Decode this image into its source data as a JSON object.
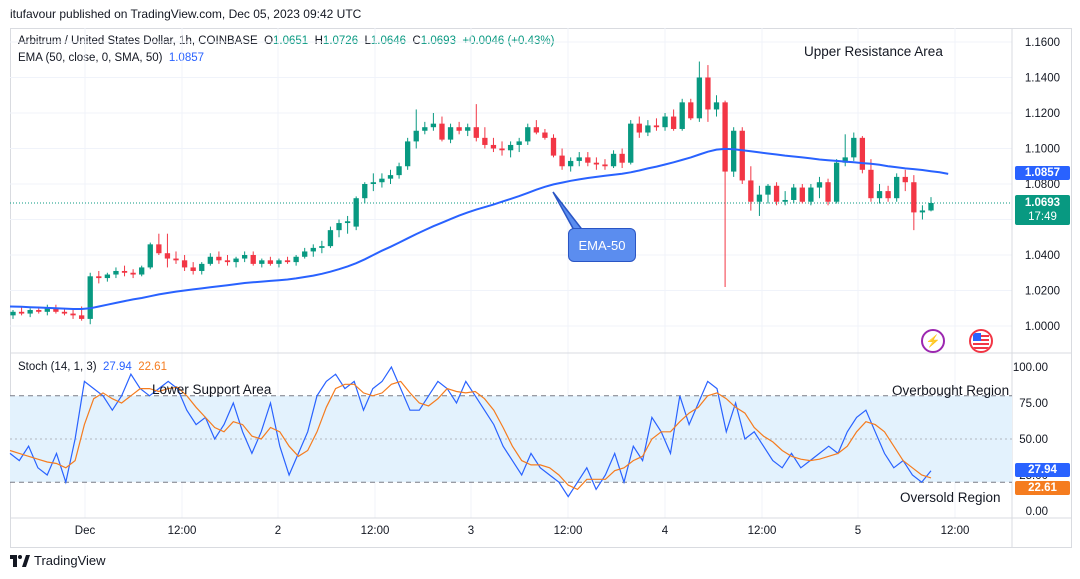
{
  "header": {
    "credit": "itufavour published on TradingView.com, Dec 05, 2023 09:42 UTC"
  },
  "legend": {
    "symbol": "Arbitrum / United States Dollar, 1h, COINBASE",
    "o_label": "O",
    "o": "1.0651",
    "h_label": "H",
    "h": "1.0726",
    "l_label": "L",
    "l": "1.0646",
    "c_label": "C",
    "c": "1.0693",
    "change": "+0.0046 (+0.43%)",
    "ema_label": "EMA (50, close, 0, SMA, 50)",
    "ema_value": "1.0857",
    "stoch_label": "Stoch (14, 1, 3)",
    "stoch_k": "27.94",
    "stoch_d": "22.61"
  },
  "annotations": {
    "upper_resistance": "Upper Resistance Area",
    "lower_support": "Lower Support Area",
    "overbought": "Overbought Region",
    "oversold": "Oversold Region",
    "ema_callout": "EMA-50"
  },
  "price_tags": {
    "ema": "1.0857",
    "close": "1.0693",
    "countdown": "17:49",
    "k": "27.94",
    "d": "22.61"
  },
  "footer": {
    "brand": "TradingView"
  },
  "colors": {
    "up": "#089981",
    "down": "#f23645",
    "ema": "#2962ff",
    "k": "#2962ff",
    "d": "#f57c1f",
    "band": "#e3f2fd"
  },
  "icons": {
    "bolt": "lightning-icon",
    "flag": "us-flag-icon"
  },
  "chart_data": [
    {
      "type": "candlestick",
      "title": "Arbitrum / United States Dollar, 1h, COINBASE",
      "ylim": [
        0.99,
        1.165
      ],
      "yticks": [
        "1.1600",
        "1.1400",
        "1.1200",
        "1.1000",
        "1.0800",
        "1.0600",
        "1.0400",
        "1.0200",
        "1.0000"
      ],
      "xticks": [
        "Dec",
        "12:00",
        "2",
        "12:00",
        "3",
        "12:00",
        "4",
        "12:00",
        "5",
        "12:00"
      ],
      "close_line": 1.0693,
      "candles": [
        [
          1.006,
          1.009,
          1.004,
          1.008
        ],
        [
          1.008,
          1.011,
          1.006,
          1.007
        ],
        [
          1.007,
          1.01,
          1.005,
          1.009
        ],
        [
          1.009,
          1.011,
          1.007,
          1.008
        ],
        [
          1.008,
          1.012,
          1.006,
          1.01
        ],
        [
          1.01,
          1.012,
          1.007,
          1.008
        ],
        [
          1.008,
          1.01,
          1.006,
          1.007
        ],
        [
          1.007,
          1.01,
          1.004,
          1.006
        ],
        [
          1.006,
          1.011,
          1.003,
          1.004
        ],
        [
          1.004,
          1.03,
          1.001,
          1.028
        ],
        [
          1.028,
          1.031,
          1.024,
          1.027
        ],
        [
          1.027,
          1.03,
          1.025,
          1.029
        ],
        [
          1.029,
          1.033,
          1.027,
          1.031
        ],
        [
          1.031,
          1.034,
          1.028,
          1.03
        ],
        [
          1.03,
          1.032,
          1.027,
          1.029
        ],
        [
          1.029,
          1.034,
          1.028,
          1.033
        ],
        [
          1.033,
          1.047,
          1.032,
          1.046
        ],
        [
          1.046,
          1.052,
          1.04,
          1.041
        ],
        [
          1.041,
          1.052,
          1.033,
          1.038
        ],
        [
          1.038,
          1.042,
          1.035,
          1.037
        ],
        [
          1.037,
          1.04,
          1.031,
          1.033
        ],
        [
          1.033,
          1.036,
          1.029,
          1.031
        ],
        [
          1.031,
          1.036,
          1.029,
          1.035
        ],
        [
          1.035,
          1.041,
          1.034,
          1.039
        ],
        [
          1.039,
          1.042,
          1.035,
          1.037
        ],
        [
          1.037,
          1.04,
          1.034,
          1.036
        ],
        [
          1.036,
          1.039,
          1.033,
          1.038
        ],
        [
          1.038,
          1.042,
          1.036,
          1.04
        ],
        [
          1.04,
          1.042,
          1.034,
          1.035
        ],
        [
          1.035,
          1.038,
          1.033,
          1.037
        ],
        [
          1.037,
          1.039,
          1.034,
          1.035
        ],
        [
          1.035,
          1.038,
          1.033,
          1.037
        ],
        [
          1.037,
          1.039,
          1.035,
          1.036
        ],
        [
          1.036,
          1.04,
          1.034,
          1.039
        ],
        [
          1.039,
          1.044,
          1.038,
          1.042
        ],
        [
          1.042,
          1.046,
          1.039,
          1.044
        ],
        [
          1.044,
          1.048,
          1.041,
          1.045
        ],
        [
          1.045,
          1.056,
          1.044,
          1.054
        ],
        [
          1.054,
          1.06,
          1.05,
          1.058
        ],
        [
          1.058,
          1.062,
          1.052,
          1.059
        ],
        [
          1.056,
          1.073,
          1.054,
          1.072
        ],
        [
          1.072,
          1.081,
          1.069,
          1.08
        ],
        [
          1.08,
          1.086,
          1.076,
          1.081
        ],
        [
          1.081,
          1.086,
          1.078,
          1.083
        ],
        [
          1.083,
          1.088,
          1.08,
          1.085
        ],
        [
          1.085,
          1.092,
          1.083,
          1.09
        ],
        [
          1.09,
          1.106,
          1.088,
          1.104
        ],
        [
          1.104,
          1.122,
          1.1,
          1.11
        ],
        [
          1.11,
          1.115,
          1.108,
          1.112
        ],
        [
          1.112,
          1.12,
          1.11,
          1.114
        ],
        [
          1.114,
          1.118,
          1.104,
          1.105
        ],
        [
          1.105,
          1.114,
          1.103,
          1.112
        ],
        [
          1.112,
          1.115,
          1.108,
          1.11
        ],
        [
          1.11,
          1.114,
          1.107,
          1.112
        ],
        [
          1.112,
          1.125,
          1.104,
          1.106
        ],
        [
          1.106,
          1.112,
          1.1,
          1.102
        ],
        [
          1.102,
          1.106,
          1.098,
          1.1
        ],
        [
          1.1,
          1.104,
          1.096,
          1.099
        ],
        [
          1.099,
          1.104,
          1.095,
          1.102
        ],
        [
          1.102,
          1.106,
          1.098,
          1.104
        ],
        [
          1.104,
          1.114,
          1.102,
          1.112
        ],
        [
          1.112,
          1.116,
          1.108,
          1.109
        ],
        [
          1.109,
          1.111,
          1.105,
          1.106
        ],
        [
          1.106,
          1.108,
          1.095,
          1.096
        ],
        [
          1.096,
          1.1,
          1.088,
          1.09
        ],
        [
          1.09,
          1.095,
          1.087,
          1.093
        ],
        [
          1.093,
          1.098,
          1.09,
          1.095
        ],
        [
          1.095,
          1.098,
          1.09,
          1.092
        ],
        [
          1.092,
          1.095,
          1.088,
          1.091
        ],
        [
          1.091,
          1.094,
          1.088,
          1.09
        ],
        [
          1.09,
          1.099,
          1.089,
          1.097
        ],
        [
          1.097,
          1.1,
          1.089,
          1.092
        ],
        [
          1.092,
          1.116,
          1.091,
          1.114
        ],
        [
          1.114,
          1.118,
          1.106,
          1.109
        ],
        [
          1.109,
          1.116,
          1.107,
          1.113
        ],
        [
          1.113,
          1.117,
          1.11,
          1.112
        ],
        [
          1.112,
          1.12,
          1.11,
          1.118
        ],
        [
          1.118,
          1.122,
          1.11,
          1.111
        ],
        [
          1.111,
          1.128,
          1.11,
          1.126
        ],
        [
          1.126,
          1.128,
          1.116,
          1.117
        ],
        [
          1.117,
          1.149,
          1.115,
          1.14
        ],
        [
          1.14,
          1.147,
          1.115,
          1.122
        ],
        [
          1.122,
          1.13,
          1.118,
          1.126
        ],
        [
          1.126,
          1.127,
          1.022,
          1.087
        ],
        [
          1.087,
          1.112,
          1.084,
          1.11
        ],
        [
          1.11,
          1.112,
          1.08,
          1.082
        ],
        [
          1.082,
          1.09,
          1.065,
          1.07
        ],
        [
          1.07,
          1.079,
          1.062,
          1.074
        ],
        [
          1.074,
          1.08,
          1.069,
          1.079
        ],
        [
          1.079,
          1.081,
          1.068,
          1.07
        ],
        [
          1.07,
          1.076,
          1.068,
          1.071
        ],
        [
          1.071,
          1.08,
          1.069,
          1.078
        ],
        [
          1.078,
          1.08,
          1.069,
          1.07
        ],
        [
          1.07,
          1.08,
          1.068,
          1.078
        ],
        [
          1.078,
          1.084,
          1.072,
          1.081
        ],
        [
          1.081,
          1.083,
          1.068,
          1.07
        ],
        [
          1.07,
          1.094,
          1.069,
          1.092
        ],
        [
          1.092,
          1.108,
          1.09,
          1.095
        ],
        [
          1.095,
          1.109,
          1.093,
          1.106
        ],
        [
          1.106,
          1.107,
          1.086,
          1.088
        ],
        [
          1.088,
          1.094,
          1.07,
          1.072
        ],
        [
          1.072,
          1.08,
          1.069,
          1.076
        ],
        [
          1.076,
          1.079,
          1.07,
          1.072
        ],
        [
          1.072,
          1.086,
          1.07,
          1.084
        ],
        [
          1.084,
          1.088,
          1.076,
          1.081
        ],
        [
          1.081,
          1.085,
          1.054,
          1.064
        ],
        [
          1.064,
          1.068,
          1.06,
          1.0651
        ],
        [
          1.0651,
          1.0726,
          1.0646,
          1.0693
        ]
      ],
      "ema_series": [
        1.011,
        1.0108,
        1.0106,
        1.0104,
        1.0102,
        1.01,
        1.0098,
        1.0096,
        1.0096,
        1.01,
        1.011,
        1.012,
        1.013,
        1.014,
        1.015,
        1.0158,
        1.0168,
        1.0178,
        1.0186,
        1.0194,
        1.02,
        1.0206,
        1.0212,
        1.0218,
        1.0224,
        1.023,
        1.0236,
        1.0242,
        1.0246,
        1.025,
        1.0254,
        1.0258,
        1.0262,
        1.0268,
        1.0276,
        1.0284,
        1.0294,
        1.0306,
        1.032,
        1.0336,
        1.0354,
        1.0376,
        1.04,
        1.0424,
        1.0446,
        1.047,
        1.0494,
        1.0518,
        1.054,
        1.0562,
        1.0582,
        1.0602,
        1.0622,
        1.064,
        1.0656,
        1.067,
        1.0684,
        1.07,
        1.0716,
        1.0732,
        1.075,
        1.0768,
        1.0784,
        1.0798,
        1.0808,
        1.0818,
        1.0826,
        1.0834,
        1.084,
        1.0846,
        1.0852,
        1.0858,
        1.0866,
        1.0876,
        1.0888,
        1.0898,
        1.091,
        1.0922,
        1.0936,
        1.095,
        1.0966,
        1.0982,
        1.0994,
        1.0998,
        1.0996,
        1.099,
        1.0984,
        1.0978,
        1.0972,
        1.0966,
        1.096,
        1.0955,
        1.095,
        1.0944,
        1.0938,
        1.0934,
        1.093,
        1.0926,
        1.0922,
        1.0918,
        1.0914,
        1.0908,
        1.09,
        1.0894,
        1.0888,
        1.0884,
        1.0879,
        1.0872,
        1.0866,
        1.0857
      ]
    },
    {
      "type": "line",
      "title": "Stoch (14, 1, 3)",
      "ylim": [
        0,
        100
      ],
      "yticks": [
        "100.00",
        "75.00",
        "50.00",
        "25.00",
        "0.00"
      ],
      "levels": [
        80,
        20
      ],
      "series": [
        {
          "name": "%K",
          "values": [
            40,
            35,
            45,
            30,
            25,
            40,
            20,
            50,
            90,
            85,
            80,
            70,
            80,
            95,
            85,
            80,
            85,
            90,
            85,
            70,
            60,
            65,
            50,
            60,
            75,
            55,
            40,
            55,
            75,
            45,
            25,
            40,
            55,
            80,
            90,
            95,
            85,
            90,
            70,
            85,
            90,
            100,
            85,
            70,
            70,
            80,
            90,
            85,
            75,
            90,
            80,
            70,
            60,
            45,
            35,
            25,
            40,
            30,
            25,
            20,
            10,
            20,
            30,
            15,
            25,
            40,
            20,
            45,
            35,
            65,
            55,
            40,
            80,
            60,
            75,
            90,
            85,
            55,
            75,
            50,
            55,
            45,
            35,
            30,
            40,
            30,
            35,
            40,
            45,
            40,
            55,
            65,
            70,
            55,
            40,
            30,
            35,
            25,
            20,
            28
          ]
        },
        {
          "name": "%D",
          "values": [
            42,
            40,
            38,
            36,
            34,
            33,
            30,
            35,
            60,
            78,
            82,
            78,
            75,
            80,
            85,
            85,
            83,
            85,
            86,
            80,
            72,
            65,
            58,
            55,
            62,
            60,
            52,
            50,
            58,
            55,
            45,
            38,
            42,
            55,
            72,
            85,
            88,
            88,
            82,
            80,
            82,
            88,
            90,
            82,
            75,
            73,
            78,
            85,
            83,
            82,
            83,
            78,
            70,
            58,
            45,
            35,
            32,
            32,
            30,
            25,
            18,
            15,
            22,
            22,
            22,
            28,
            30,
            35,
            38,
            50,
            55,
            55,
            62,
            68,
            72,
            80,
            82,
            78,
            72,
            68,
            58,
            52,
            48,
            42,
            38,
            36,
            35,
            36,
            38,
            40,
            45,
            55,
            62,
            60,
            55,
            45,
            35,
            30,
            25,
            23
          ]
        }
      ]
    }
  ]
}
